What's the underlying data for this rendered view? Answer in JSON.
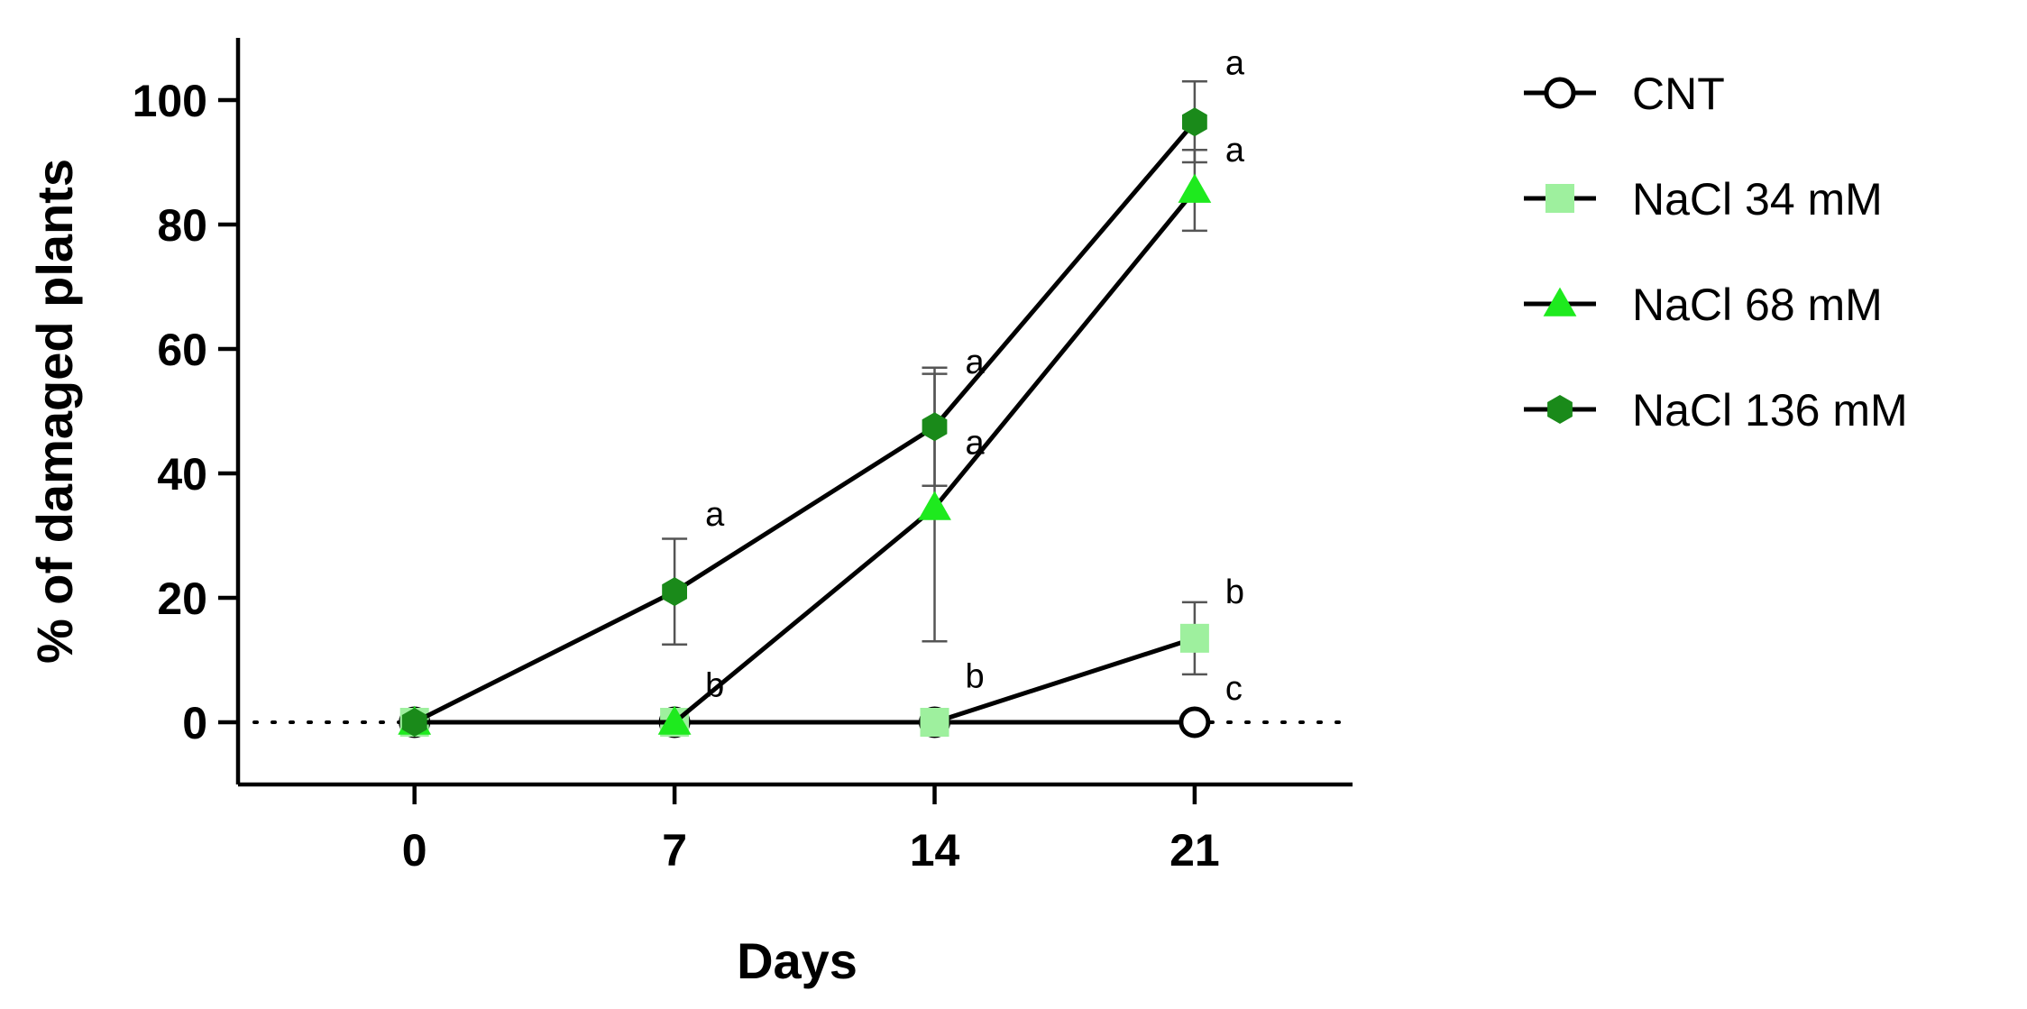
{
  "chart_data": {
    "type": "line",
    "xlabel": "Days",
    "ylabel": "% of damaged plants",
    "x": [
      0,
      7,
      14,
      21
    ],
    "xticks": [
      "0",
      "7",
      "14",
      "21"
    ],
    "xlim": [
      -4.75,
      25.25
    ],
    "yticks": [
      "0",
      "20",
      "40",
      "60",
      "80",
      "100"
    ],
    "ylim": [
      -10,
      110
    ],
    "grid": false,
    "reference_line": 0,
    "legend_position": "right",
    "series": [
      {
        "name": "CNT",
        "marker": "circle-open",
        "color": "#ffffff",
        "x": [
          0,
          7,
          14,
          21
        ],
        "values": [
          0,
          0,
          0,
          0
        ],
        "errors": [
          0,
          0,
          0,
          0
        ]
      },
      {
        "name": "NaCl 34 mM",
        "marker": "square",
        "color": "#9ef09e",
        "x": [
          0,
          7,
          14,
          21
        ],
        "values": [
          0,
          0,
          0,
          13.5
        ],
        "errors": [
          0,
          0,
          0,
          5.8
        ]
      },
      {
        "name": "NaCl 68 mM",
        "marker": "triangle",
        "color": "#1eea1e",
        "x": [
          0,
          7,
          14,
          21
        ],
        "values": [
          0,
          0,
          34.5,
          85.5
        ],
        "errors": [
          0,
          0,
          21.5,
          6.5
        ]
      },
      {
        "name": "NaCl 136 mM",
        "marker": "hexagon",
        "color": "#1a8a1a",
        "x": [
          0,
          7,
          14,
          21
        ],
        "values": [
          0,
          21,
          47.5,
          96.5
        ],
        "errors": [
          0,
          8.5,
          9.5,
          6.5
        ]
      }
    ],
    "annotations": [
      {
        "x": 7,
        "y": 33.5,
        "text": "a"
      },
      {
        "x": 7,
        "y": 6,
        "text": "b"
      },
      {
        "x": 14,
        "y": 58,
        "text": "a"
      },
      {
        "x": 14,
        "y": 45,
        "text": "a"
      },
      {
        "x": 14,
        "y": 7.5,
        "text": "b"
      },
      {
        "x": 21,
        "y": 106,
        "text": "a"
      },
      {
        "x": 21,
        "y": 92,
        "text": "a"
      },
      {
        "x": 21,
        "y": 21,
        "text": "b"
      },
      {
        "x": 21,
        "y": 5.5,
        "text": "c"
      }
    ]
  }
}
